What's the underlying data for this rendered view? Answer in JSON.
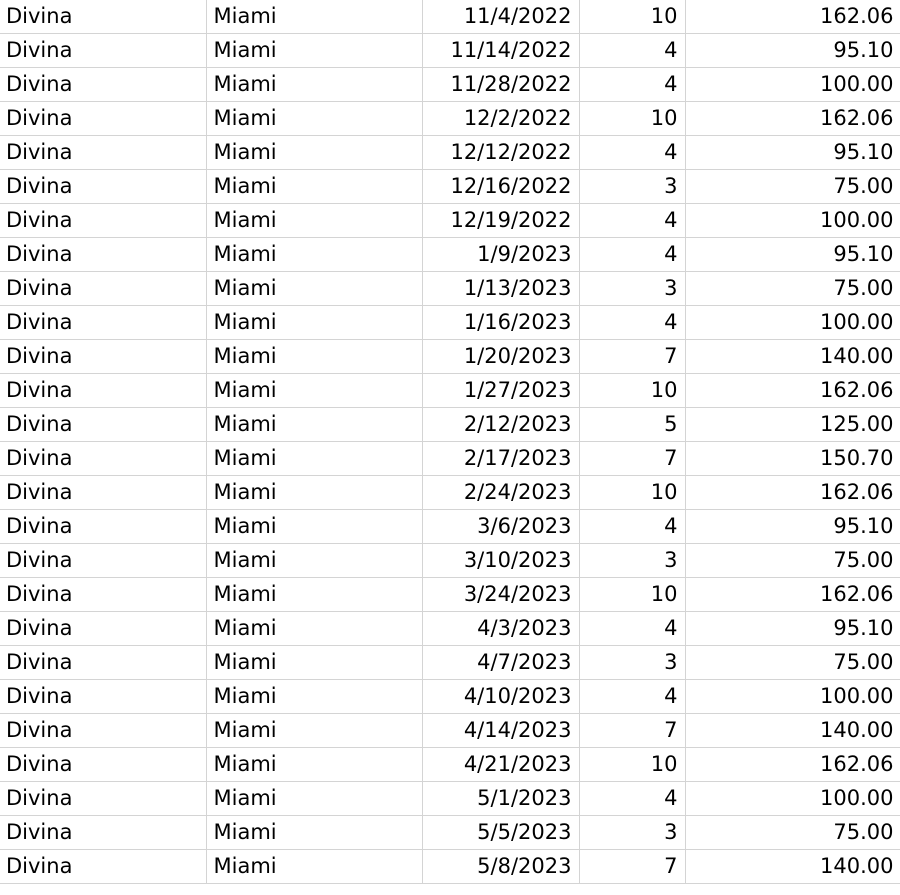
{
  "sheet": {
    "rows": [
      {
        "name": "Divina",
        "city": "Miami",
        "date": "11/4/2022",
        "qty": "10",
        "amount": "162.06"
      },
      {
        "name": "Divina",
        "city": "Miami",
        "date": "11/14/2022",
        "qty": "4",
        "amount": "95.10"
      },
      {
        "name": "Divina",
        "city": "Miami",
        "date": "11/28/2022",
        "qty": "4",
        "amount": "100.00"
      },
      {
        "name": "Divina",
        "city": "Miami",
        "date": "12/2/2022",
        "qty": "10",
        "amount": "162.06"
      },
      {
        "name": "Divina",
        "city": "Miami",
        "date": "12/12/2022",
        "qty": "4",
        "amount": "95.10"
      },
      {
        "name": "Divina",
        "city": "Miami",
        "date": "12/16/2022",
        "qty": "3",
        "amount": "75.00"
      },
      {
        "name": "Divina",
        "city": "Miami",
        "date": "12/19/2022",
        "qty": "4",
        "amount": "100.00"
      },
      {
        "name": "Divina",
        "city": "Miami",
        "date": "1/9/2023",
        "qty": "4",
        "amount": "95.10"
      },
      {
        "name": "Divina",
        "city": "Miami",
        "date": "1/13/2023",
        "qty": "3",
        "amount": "75.00"
      },
      {
        "name": "Divina",
        "city": "Miami",
        "date": "1/16/2023",
        "qty": "4",
        "amount": "100.00"
      },
      {
        "name": "Divina",
        "city": "Miami",
        "date": "1/20/2023",
        "qty": "7",
        "amount": "140.00"
      },
      {
        "name": "Divina",
        "city": "Miami",
        "date": "1/27/2023",
        "qty": "10",
        "amount": "162.06"
      },
      {
        "name": "Divina",
        "city": "Miami",
        "date": "2/12/2023",
        "qty": "5",
        "amount": "125.00"
      },
      {
        "name": "Divina",
        "city": "Miami",
        "date": "2/17/2023",
        "qty": "7",
        "amount": "150.70"
      },
      {
        "name": "Divina",
        "city": "Miami",
        "date": "2/24/2023",
        "qty": "10",
        "amount": "162.06"
      },
      {
        "name": "Divina",
        "city": "Miami",
        "date": "3/6/2023",
        "qty": "4",
        "amount": "95.10"
      },
      {
        "name": "Divina",
        "city": "Miami",
        "date": "3/10/2023",
        "qty": "3",
        "amount": "75.00"
      },
      {
        "name": "Divina",
        "city": "Miami",
        "date": "3/24/2023",
        "qty": "10",
        "amount": "162.06"
      },
      {
        "name": "Divina",
        "city": "Miami",
        "date": "4/3/2023",
        "qty": "4",
        "amount": "95.10"
      },
      {
        "name": "Divina",
        "city": "Miami",
        "date": "4/7/2023",
        "qty": "3",
        "amount": "75.00"
      },
      {
        "name": "Divina",
        "city": "Miami",
        "date": "4/10/2023",
        "qty": "4",
        "amount": "100.00"
      },
      {
        "name": "Divina",
        "city": "Miami",
        "date": "4/14/2023",
        "qty": "7",
        "amount": "140.00"
      },
      {
        "name": "Divina",
        "city": "Miami",
        "date": "4/21/2023",
        "qty": "10",
        "amount": "162.06"
      },
      {
        "name": "Divina",
        "city": "Miami",
        "date": "5/1/2023",
        "qty": "4",
        "amount": "100.00"
      },
      {
        "name": "Divina",
        "city": "Miami",
        "date": "5/5/2023",
        "qty": "3",
        "amount": "75.00"
      },
      {
        "name": "Divina",
        "city": "Miami",
        "date": "5/8/2023",
        "qty": "7",
        "amount": "140.00"
      }
    ]
  }
}
